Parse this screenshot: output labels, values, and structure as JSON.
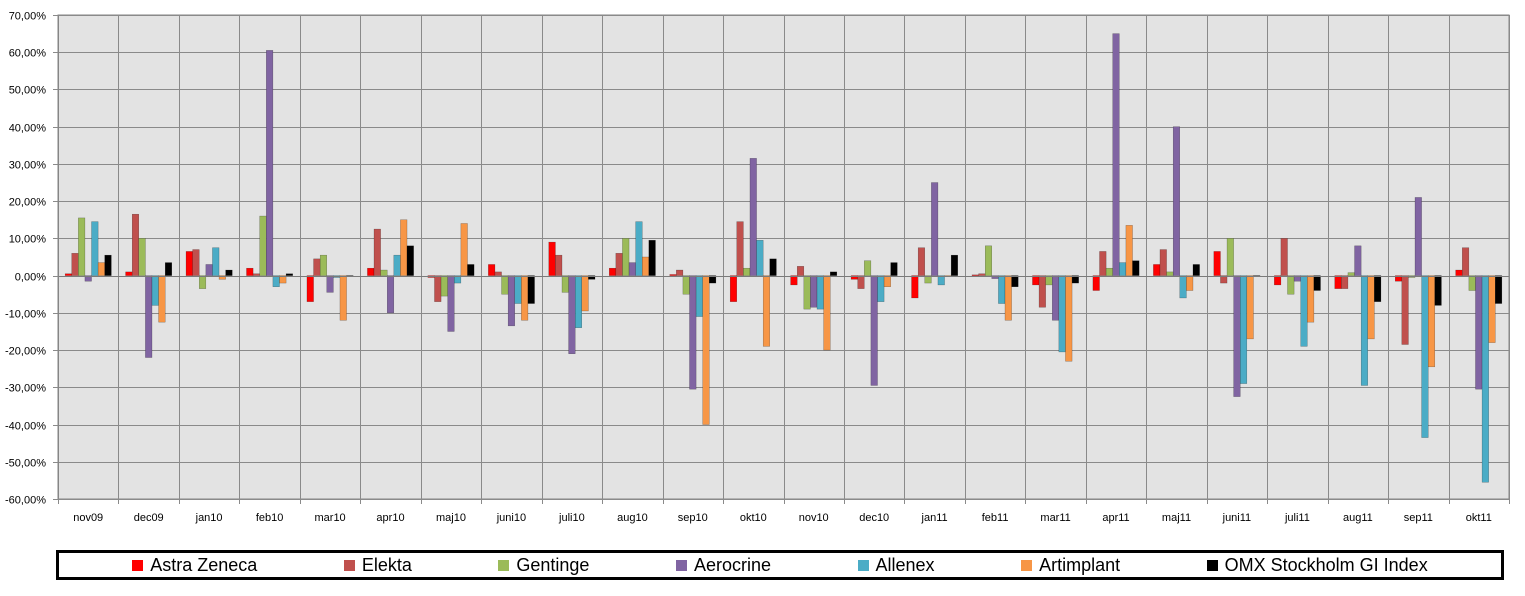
{
  "chart_data": {
    "type": "bar",
    "categories": [
      "nov09",
      "dec09",
      "jan10",
      "feb10",
      "mar10",
      "apr10",
      "maj10",
      "juni10",
      "juli10",
      "aug10",
      "sep10",
      "okt10",
      "nov10",
      "dec10",
      "jan11",
      "feb11",
      "mar11",
      "apr11",
      "maj11",
      "juni11",
      "juli11",
      "aug11",
      "sep11",
      "okt11"
    ],
    "ylim": [
      -60,
      70
    ],
    "ytick_step": 10,
    "ytick_labels": [
      "-60,00%",
      "-50,00%",
      "-40,00%",
      "-30,00%",
      "-20,00%",
      "-10,00%",
      "0,00%",
      "10,00%",
      "20,00%",
      "30,00%",
      "40,00%",
      "50,00%",
      "60,00%",
      "70,00%"
    ],
    "grid": true,
    "legend_position": "bottom",
    "series": [
      {
        "name": "Astra Zeneca",
        "color": "#ff0000",
        "values": [
          0.5,
          1,
          6.5,
          2,
          -7,
          2,
          -0.5,
          3,
          9,
          2,
          0.3,
          -7,
          -2.5,
          -1,
          -6,
          0.2,
          -2.5,
          -4,
          3,
          6.5,
          -2.5,
          -3.5,
          -1.5,
          1.5
        ]
      },
      {
        "name": "Elekta",
        "color": "#c0504d",
        "values": [
          6,
          16.5,
          7,
          0.5,
          4.5,
          12.5,
          -7,
          1,
          5.5,
          6,
          1.5,
          14.5,
          2.5,
          -3.5,
          7.5,
          0.5,
          -8.5,
          6.5,
          7,
          -2,
          10,
          -3.5,
          -18.5,
          7.5
        ]
      },
      {
        "name": "Gentinge",
        "color": "#9bbb59",
        "values": [
          15.5,
          10,
          -3.5,
          16,
          5.5,
          1.5,
          -5.5,
          -5,
          -4.5,
          10,
          -5,
          2,
          -9,
          4,
          -2,
          8,
          -2.5,
          2,
          1,
          10,
          -5,
          0.8,
          -0.5,
          -4
        ]
      },
      {
        "name": "Aerocrine",
        "color": "#8064a2",
        "values": [
          -1.5,
          -22,
          3,
          60.5,
          -4.5,
          -10,
          -15,
          -13.5,
          -21,
          3.5,
          -30.5,
          31.5,
          -8.5,
          -29.5,
          25,
          -0.8,
          -12,
          65,
          40,
          -32.5,
          -1.5,
          8,
          21,
          -30.5
        ]
      },
      {
        "name": "Allenex",
        "color": "#4bacc6",
        "values": [
          14.5,
          -8,
          7.5,
          -3,
          -0.5,
          5.5,
          -2,
          -7.5,
          -14,
          14.5,
          -11,
          9.5,
          -9,
          -7,
          -2.5,
          -7.5,
          -20.5,
          3.5,
          -6,
          -29,
          -19,
          -29.5,
          -43.5,
          -55.5
        ]
      },
      {
        "name": "Artimplant",
        "color": "#f79646",
        "values": [
          3.5,
          -12.5,
          -1,
          -2,
          -12,
          15,
          14,
          -12,
          -9.5,
          5,
          -40,
          -19,
          -20,
          -3,
          -0.3,
          -12,
          -23,
          13.5,
          -4,
          -17,
          -12.5,
          -17,
          -24.5,
          -18
        ]
      },
      {
        "name": "OMX Stockholm GI Index",
        "color": "#000000",
        "values": [
          5.5,
          3.5,
          1.5,
          0.5,
          -0.2,
          8,
          3,
          -7.5,
          -1,
          9.5,
          -2,
          4.5,
          1,
          3.5,
          5.5,
          -3,
          -2,
          4,
          3,
          -0.2,
          -4,
          -7,
          -8,
          -7.5
        ]
      }
    ]
  }
}
